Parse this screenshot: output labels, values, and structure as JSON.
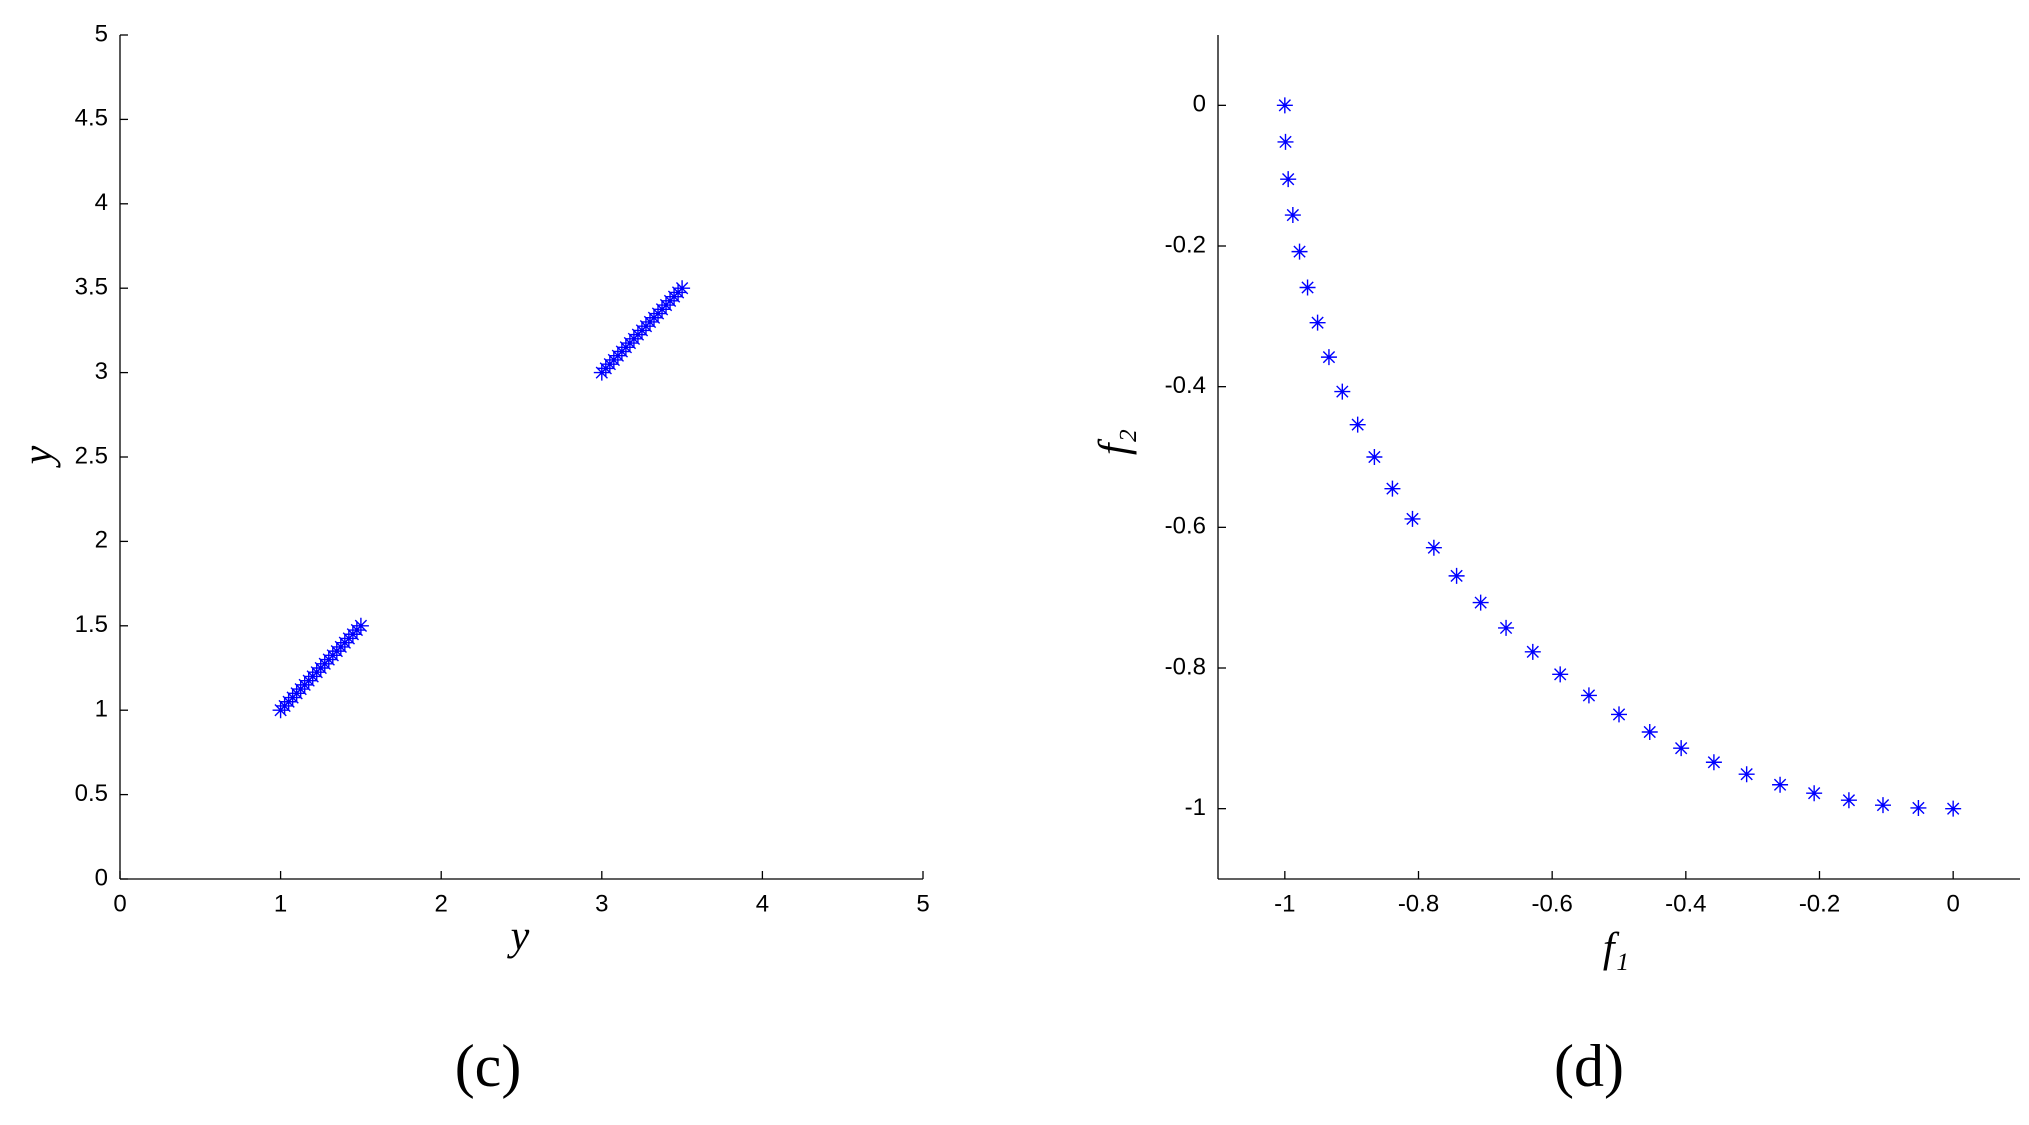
{
  "chart_data": [
    {
      "type": "scatter",
      "xlabel": "y",
      "ylabel": "y",
      "caption": "(c)",
      "xlim": [
        0,
        5
      ],
      "ylim": [
        0,
        5
      ],
      "xticks": [
        0,
        1,
        2,
        3,
        4,
        5
      ],
      "yticks": [
        0,
        0.5,
        1,
        1.5,
        2,
        2.5,
        3,
        3.5,
        4,
        4.5,
        5
      ],
      "series": [
        {
          "color": "#0000ff",
          "x": [
            1.0,
            1.025,
            1.05,
            1.075,
            1.1,
            1.125,
            1.15,
            1.175,
            1.2,
            1.225,
            1.25,
            1.275,
            1.3,
            1.325,
            1.35,
            1.375,
            1.4,
            1.425,
            1.45,
            1.475,
            1.5,
            3.0,
            3.025,
            3.05,
            3.075,
            3.1,
            3.125,
            3.15,
            3.175,
            3.2,
            3.225,
            3.25,
            3.275,
            3.3,
            3.325,
            3.35,
            3.375,
            3.4,
            3.425,
            3.45,
            3.475,
            3.5
          ],
          "values": [
            1.0,
            1.025,
            1.05,
            1.075,
            1.1,
            1.125,
            1.15,
            1.175,
            1.2,
            1.225,
            1.25,
            1.275,
            1.3,
            1.325,
            1.35,
            1.375,
            1.4,
            1.425,
            1.45,
            1.475,
            1.5,
            3.0,
            3.025,
            3.05,
            3.075,
            3.1,
            3.125,
            3.15,
            3.175,
            3.2,
            3.225,
            3.25,
            3.275,
            3.3,
            3.325,
            3.35,
            3.375,
            3.4,
            3.425,
            3.45,
            3.475,
            3.5
          ]
        }
      ]
    },
    {
      "type": "scatter",
      "xlabel": "f₁",
      "ylabel": "f₂",
      "caption": "(d)",
      "xlim": [
        -1.1,
        0.1
      ],
      "ylim": [
        -1.1,
        0.1
      ],
      "xticks": [
        -1,
        -0.8,
        -0.6,
        -0.4,
        -0.2,
        0
      ],
      "yticks": [
        -1,
        -0.8,
        -0.6,
        -0.4,
        -0.2,
        0
      ],
      "series": [
        {
          "color": "#0000ff",
          "x": [
            -1,
            -0.999,
            -0.995,
            -0.988,
            -0.978,
            -0.966,
            -0.951,
            -0.934,
            -0.914,
            -0.891,
            -0.866,
            -0.839,
            -0.809,
            -0.777,
            -0.743,
            -0.707,
            -0.669,
            -0.629,
            -0.588,
            -0.545,
            -0.5,
            -0.454,
            -0.407,
            -0.358,
            -0.309,
            -0.259,
            -0.208,
            -0.156,
            -0.105,
            -0.052,
            0
          ],
          "values": [
            0,
            -0.052,
            -0.105,
            -0.156,
            -0.208,
            -0.259,
            -0.309,
            -0.358,
            -0.407,
            -0.454,
            -0.5,
            -0.545,
            -0.588,
            -0.629,
            -0.669,
            -0.707,
            -0.743,
            -0.777,
            -0.809,
            -0.839,
            -0.866,
            -0.891,
            -0.914,
            -0.934,
            -0.951,
            -0.966,
            -0.978,
            -0.988,
            -0.995,
            -0.999,
            -1
          ]
        }
      ]
    }
  ]
}
